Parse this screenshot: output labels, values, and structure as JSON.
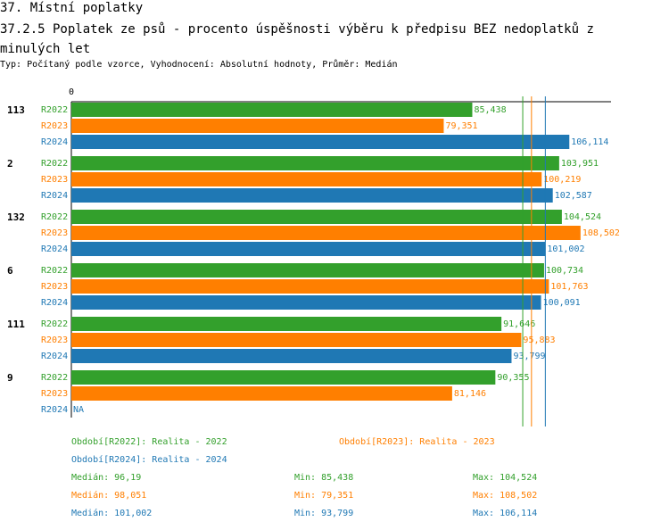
{
  "header": {
    "title": "37. Místní poplatky",
    "subtitle": "37.2.5 Poplatek ze psů - procento úspěšnosti výběru k předpisu BEZ nedoplatků z minulých let",
    "type_line": "Typ: Počítaný podle vzorce, Vyhodnocení: Absolutní hodnoty, Průměr: Medián"
  },
  "colors": {
    "R2022": "#33a02c",
    "R2023": "#ff7f00",
    "R2024": "#1f78b4"
  },
  "chart_data": {
    "type": "bar",
    "orientation": "horizontal",
    "x_axis_zero_label": "0",
    "xlim": [
      0,
      115
    ],
    "groups": [
      "113",
      "2",
      "132",
      "6",
      "111",
      "9"
    ],
    "series": [
      {
        "name": "R2022",
        "values": [
          85.438,
          103.951,
          104.524,
          100.734,
          91.646,
          90.355
        ],
        "labels": [
          "85,438",
          "103,951",
          "104,524",
          "100,734",
          "91,646",
          "90,355"
        ]
      },
      {
        "name": "R2023",
        "values": [
          79.351,
          100.219,
          108.502,
          101.763,
          95.883,
          81.146
        ],
        "labels": [
          "79,351",
          "100,219",
          "108,502",
          "101,763",
          "95,883",
          "81,146"
        ]
      },
      {
        "name": "R2024",
        "values": [
          106.114,
          102.587,
          101.002,
          100.091,
          93.799,
          null
        ],
        "labels": [
          "106,114",
          "102,587",
          "101,002",
          "100,091",
          "93,799",
          "NA"
        ]
      }
    ],
    "median_lines": [
      {
        "series": "R2022",
        "value": 96.19
      },
      {
        "series": "R2023",
        "value": 98.051
      },
      {
        "series": "R2024",
        "value": 101.002
      }
    ]
  },
  "legend": {
    "r2022": "Období[R2022]: Realita - 2022",
    "r2023": "Období[R2023]: Realita - 2023",
    "r2024": "Období[R2024]: Realita - 2024"
  },
  "stats": [
    {
      "median": "Medián: 96,19",
      "min": "Min: 85,438",
      "max": "Max: 104,524"
    },
    {
      "median": "Medián: 98,051",
      "min": "Min: 79,351",
      "max": "Max: 108,502"
    },
    {
      "median": "Medián: 101,002",
      "min": "Min: 93,799",
      "max": "Max: 106,114"
    }
  ]
}
